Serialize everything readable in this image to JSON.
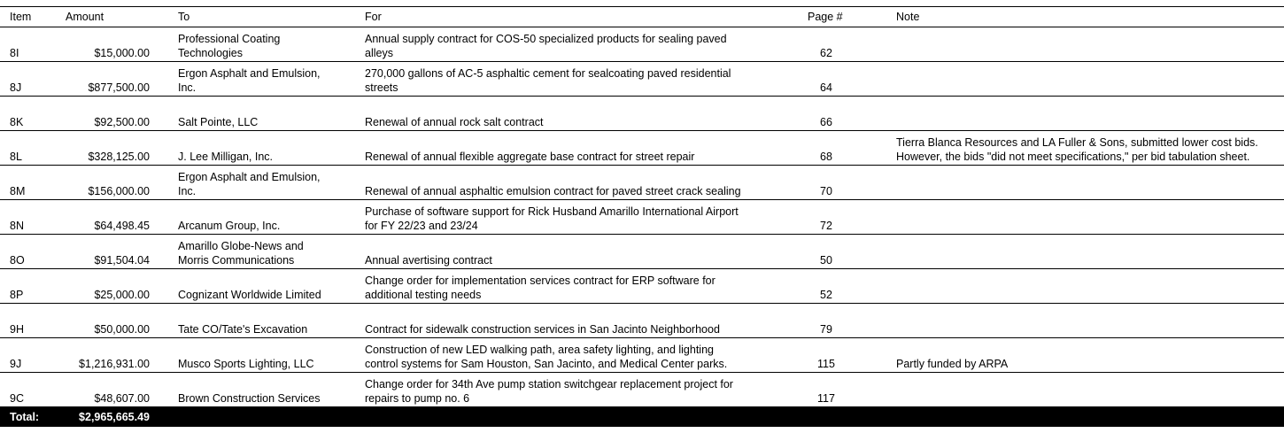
{
  "headers": {
    "item": "Item",
    "amount": "Amount",
    "to": "To",
    "for": "For",
    "page": "Page #",
    "note": "Note"
  },
  "rows": [
    {
      "item": "8I",
      "amount": "$15,000.00",
      "to": [
        "Professional Coating",
        "Technologies"
      ],
      "for": [
        "Annual supply contract for COS-50 specialized products for sealing paved",
        "alleys"
      ],
      "page": "62",
      "note": []
    },
    {
      "item": "8J",
      "amount": "$877,500.00",
      "to": [
        "Ergon Asphalt and Emulsion,",
        "Inc."
      ],
      "for": [
        "270,000 gallons of AC-5 asphaltic cement for sealcoating paved residential",
        "streets"
      ],
      "page": "64",
      "note": []
    },
    {
      "item": "8K",
      "amount": "$92,500.00",
      "to": [
        "Salt Pointe, LLC"
      ],
      "for": [
        "Renewal of annual rock salt contract"
      ],
      "page": "66",
      "note": []
    },
    {
      "item": "8L",
      "amount": "$328,125.00",
      "to": [
        "J. Lee Milligan, Inc."
      ],
      "for": [
        "Renewal of annual flexible aggregate base contract for street repair"
      ],
      "page": "68",
      "note": [
        "Tierra Blanca Resources and LA Fuller & Sons, submitted lower cost bids.",
        "However, the bids \"did not meet specifications,\" per bid tabulation sheet."
      ]
    },
    {
      "item": "8M",
      "amount": "$156,000.00",
      "to": [
        "Ergon Asphalt and Emulsion,",
        "Inc."
      ],
      "for": [
        "Renewal of annual asphaltic emulsion contract for paved street crack sealing"
      ],
      "page": "70",
      "note": []
    },
    {
      "item": "8N",
      "amount": "$64,498.45",
      "to": [
        "Arcanum Group, Inc."
      ],
      "for": [
        "Purchase of software support for Rick Husband Amarillo International Airport",
        "for FY  22/23 and 23/24"
      ],
      "page": "72",
      "note": []
    },
    {
      "item": "8O",
      "amount": "$91,504.04",
      "to": [
        "Amarillo Globe-News and",
        "Morris Communications"
      ],
      "for": [
        "Annual avertising contract"
      ],
      "page": "50",
      "note": []
    },
    {
      "item": "8P",
      "amount": "$25,000.00",
      "to": [
        "Cognizant Worldwide Limited"
      ],
      "for": [
        "Change order for implementation services contract for ERP software for",
        "additional testing needs"
      ],
      "page": "52",
      "note": []
    },
    {
      "item": "9H",
      "amount": "$50,000.00",
      "to": [
        "Tate CO/Tate's Excavation"
      ],
      "for": [
        "Contract for sidewalk construction services in San Jacinto Neighborhood"
      ],
      "page": "79",
      "note": []
    },
    {
      "item": "9J",
      "amount": "$1,216,931.00",
      "to": [
        "Musco Sports Lighting, LLC"
      ],
      "for": [
        "Construction of new LED walking path, area safety lighting, and lighting",
        "control systems for Sam Houston, San Jacinto, and Medical Center parks."
      ],
      "page": "115",
      "note": [
        "Partly funded by ARPA"
      ]
    },
    {
      "item": "9C",
      "amount": "$48,607.00",
      "to": [
        "Brown Construction Services"
      ],
      "for": [
        "Change order for 34th Ave pump station switchgear replacement project for",
        "repairs to pump no. 6"
      ],
      "page": "117",
      "note": []
    }
  ],
  "total": {
    "label": "Total:",
    "amount": "$2,965,665.49"
  }
}
